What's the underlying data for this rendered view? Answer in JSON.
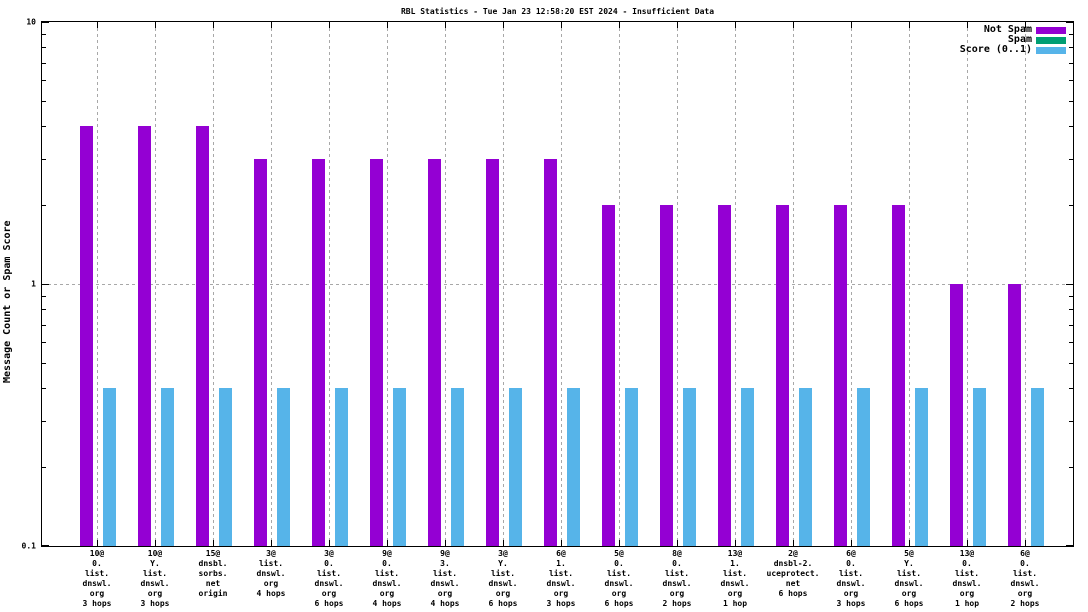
{
  "chart_data": {
    "type": "bar",
    "title": "RBL Statistics - Tue Jan 23 12:58:20 EST 2024 - Insufficient Data",
    "ylabel": "Message Count or Spam Score",
    "yscale": "log",
    "ylim": [
      0.1,
      10
    ],
    "yticks": [
      10,
      1,
      0.1
    ],
    "ytick_labels": [
      "10",
      "1",
      "0.1"
    ],
    "grid": true,
    "legend_position": "top-right-inside",
    "background_color": "#ffffff",
    "grid_color": "#a8a8a8",
    "categories": [
      "10@0.list.dnswl.org 3 hops",
      "10@Y.list.dnswl.org 3 hops",
      "15@dnsbl.sorbs.net origin",
      "3@list.dnswl.org 4 hops",
      "3@0.list.dnswl.org 6 hops",
      "9@0.list.dnswl.org 4 hops",
      "9@3.list.dnswl.org 4 hops",
      "3@Y.list.dnswl.org 6 hops",
      "6@1.list.dnswl.org 3 hops",
      "5@0.list.dnswl.org 6 hops",
      "8@0.list.dnswl.org 2 hops",
      "13@1.list.dnswl.org 1 hop",
      "2@dnsbl-2.uceprotect.net 6 hops",
      "6@0.list.dnswl.org 3 hops",
      "5@Y.list.dnswl.org 6 hops",
      "13@0.list.dnswl.org 1 hop",
      "6@0.list.dnswl.org 2 hops"
    ],
    "category_tick_lines": [
      [
        "10@",
        "0.",
        "list.",
        "dnswl.",
        "org",
        "3 hops"
      ],
      [
        "10@",
        "Y.",
        "list.",
        "dnswl.",
        "org",
        "3 hops"
      ],
      [
        "15@",
        "dnsbl.",
        "sorbs.",
        "net",
        "origin"
      ],
      [
        "3@",
        "list.",
        "dnswl.",
        "org",
        "4 hops"
      ],
      [
        "3@",
        "0.",
        "list.",
        "dnswl.",
        "org",
        "6 hops"
      ],
      [
        "9@",
        "0.",
        "list.",
        "dnswl.",
        "org",
        "4 hops"
      ],
      [
        "9@",
        "3.",
        "list.",
        "dnswl.",
        "org",
        "4 hops"
      ],
      [
        "3@",
        "Y.",
        "list.",
        "dnswl.",
        "org",
        "6 hops"
      ],
      [
        "6@",
        "1.",
        "list.",
        "dnswl.",
        "org",
        "3 hops"
      ],
      [
        "5@",
        "0.",
        "list.",
        "dnswl.",
        "org",
        "6 hops"
      ],
      [
        "8@",
        "0.",
        "list.",
        "dnswl.",
        "org",
        "2 hops"
      ],
      [
        "13@",
        "1.",
        "list.",
        "dnswl.",
        "org",
        "1 hop"
      ],
      [
        "2@",
        "dnsbl-2.",
        "uceprotect.",
        "net",
        "6 hops"
      ],
      [
        "6@",
        "0.",
        "list.",
        "dnswl.",
        "org",
        "3 hops"
      ],
      [
        "5@",
        "Y.",
        "list.",
        "dnswl.",
        "org",
        "6 hops"
      ],
      [
        "13@",
        "0.",
        "list.",
        "dnswl.",
        "org",
        "1 hop"
      ],
      [
        "6@",
        "0.",
        "list.",
        "dnswl.",
        "org",
        "2 hops"
      ]
    ],
    "series": [
      {
        "name": "Not Spam",
        "color": "#9400D3",
        "values": [
          4,
          4,
          4,
          3,
          3,
          3,
          3,
          3,
          3,
          2,
          2,
          2,
          2,
          2,
          2,
          1,
          1
        ]
      },
      {
        "name": "Spam",
        "color": "#009E73",
        "values": [
          0,
          0,
          0,
          0,
          0,
          0,
          0,
          0,
          0,
          0,
          0,
          0,
          0,
          0,
          0,
          0,
          0
        ]
      },
      {
        "name": "Score (0..1)",
        "color": "#56B4E9",
        "values": [
          0.4,
          0.4,
          0.4,
          0.4,
          0.4,
          0.4,
          0.4,
          0.4,
          0.4,
          0.4,
          0.4,
          0.4,
          0.4,
          0.4,
          0.4,
          0.4,
          0.4
        ]
      }
    ],
    "legend": {
      "position": "top-right",
      "entries": [
        {
          "label": "Not Spam",
          "color": "#9400D3"
        },
        {
          "label": "Spam",
          "color": "#009E73"
        },
        {
          "label": "Score (0..1)",
          "color": "#56B4E9"
        }
      ]
    }
  }
}
